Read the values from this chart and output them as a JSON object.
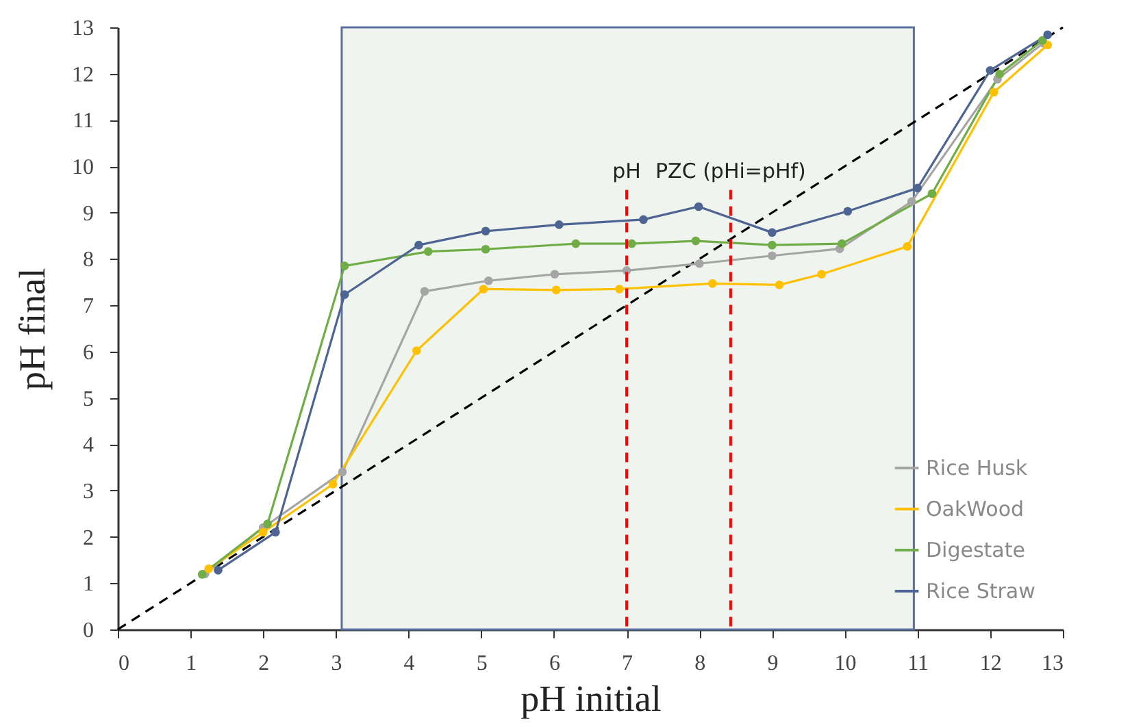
{
  "chart_data": {
    "type": "line",
    "xlabel": "pH initial",
    "ylabel": "pH final",
    "xlim": [
      0,
      13
    ],
    "xticks": [
      0,
      1,
      2,
      3,
      4,
      5,
      6,
      7,
      8,
      9,
      10,
      11,
      12,
      13
    ],
    "ylim": [
      0,
      13
    ],
    "yticks": [
      0,
      1,
      2,
      3,
      4,
      5,
      6,
      7,
      8,
      9,
      10,
      11,
      12,
      13
    ],
    "grid": false,
    "legend": "bottom right",
    "marker": "circle",
    "series": [
      {
        "name": "Rice Husk",
        "color": "#a5a5a5",
        "x": [
          1.2,
          2.0,
          3.09,
          4.22,
          5.1,
          6.01,
          7.0,
          8.0,
          9.0,
          9.93,
          10.92,
          12.1,
          12.73
        ],
        "values": [
          1.2,
          2.2,
          3.4,
          7.3,
          7.53,
          7.67,
          7.75,
          7.9,
          8.07,
          8.22,
          9.24,
          11.88,
          12.66
        ]
      },
      {
        "name": "OakWood",
        "color": "#ffc000",
        "x": [
          1.25,
          2.0,
          2.96,
          4.11,
          5.03,
          6.03,
          6.9,
          8.18,
          9.1,
          9.68,
          10.86,
          12.05,
          12.79
        ],
        "values": [
          1.31,
          2.1,
          3.14,
          6.02,
          7.35,
          7.33,
          7.35,
          7.47,
          7.44,
          7.67,
          8.27,
          11.6,
          12.62
        ]
      },
      {
        "name": "Digestate",
        "color": "#70ad47",
        "x": [
          1.16,
          2.06,
          3.12,
          4.27,
          5.06,
          6.3,
          7.07,
          7.95,
          9.0,
          9.96,
          11.2,
          12.13,
          12.72
        ],
        "values": [
          1.19,
          2.28,
          7.85,
          8.16,
          8.21,
          8.33,
          8.33,
          8.39,
          8.3,
          8.33,
          9.41,
          11.99,
          12.72
        ]
      },
      {
        "name": "Rice Straw",
        "color": "#4e6492",
        "x": [
          1.38,
          2.17,
          3.12,
          4.14,
          5.06,
          6.07,
          7.23,
          7.99,
          9.0,
          10.04,
          11.0,
          12.0,
          12.79
        ],
        "values": [
          1.28,
          2.1,
          7.23,
          8.3,
          8.6,
          8.74,
          8.85,
          9.13,
          8.57,
          9.03,
          9.53,
          12.07,
          12.84
        ]
      },
      {
        "type": "line",
        "color": "#000000",
        "line_style": "dashed",
        "marker": "none",
        "x": [
          0,
          13
        ],
        "values": [
          0,
          13
        ]
      }
    ],
    "ref_lines": [
      {
        "axis": "x",
        "value": 7,
        "label": "pH",
        "color": "#ff0000",
        "line_style": "dashed"
      },
      {
        "axis": "x",
        "value": 8.43,
        "label": "PZC (pHi=pHf)",
        "color": "#ff0000",
        "line_style": "dashed"
      }
    ],
    "bands": [
      {
        "axis": "x",
        "from": 3.08,
        "to": 10.95,
        "color": "#eff5ee"
      }
    ]
  }
}
